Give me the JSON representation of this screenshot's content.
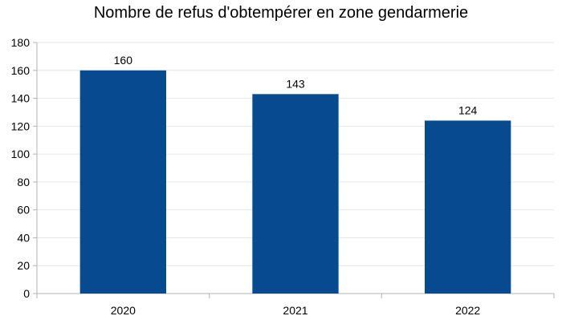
{
  "chart_data": {
    "type": "bar",
    "title": "Nombre de refus d'obtempérer en zone gendarmerie",
    "categories": [
      "2020",
      "2021",
      "2022"
    ],
    "values": [
      160,
      143,
      124
    ],
    "data_labels": [
      "160",
      "143",
      "124"
    ],
    "xlabel": "",
    "ylabel": "",
    "ylim": [
      0,
      180
    ],
    "yticks": [
      0,
      20,
      40,
      60,
      80,
      100,
      120,
      140,
      160,
      180
    ],
    "ytick_labels": [
      "0",
      "20",
      "40",
      "60",
      "80",
      "100",
      "120",
      "140",
      "160",
      "180"
    ],
    "grid": true,
    "legend": "none",
    "colors": {
      "bar": "#074A8F",
      "grid": "#E6E6E6",
      "axis": "#B3B3B3"
    }
  }
}
